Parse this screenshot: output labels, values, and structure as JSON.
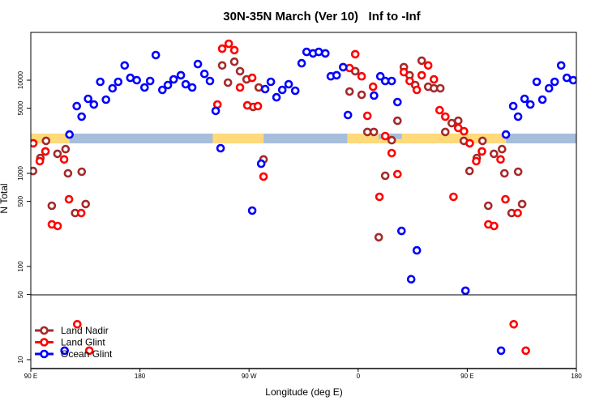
{
  "chart_data": {
    "type": "scatter",
    "title": "30N-35N March (Ver 10)   Inf to -Inf",
    "xlabel": "Longitude (deg E)",
    "ylabel": "N Total",
    "x_axis": {
      "range_deg_e": [
        90,
        180
      ],
      "wraps": "90 E eastward through 180, 0 and back to 180 (450 degrees)",
      "tick_labels": [
        "90 E",
        "180",
        "90 W",
        "0",
        "90 E",
        "180"
      ]
    },
    "y_axis": {
      "scale": "log",
      "upper_tick_labels": [
        "10000",
        "5000",
        "1000",
        "500",
        "100",
        "50"
      ],
      "lower_tick_labels": [
        "10"
      ],
      "panel_break": 50
    },
    "grid": false,
    "legend_position": "bottom-left",
    "coverage_band": {
      "value_range": [
        2100,
        2670
      ],
      "ocean_color": "#A6BDDB",
      "land_color": "#FFD97A",
      "land_segments_deg_e": [
        [
          -120,
          -78
        ],
        [
          -9,
          122
        ]
      ],
      "ocean_bumps_deg_e": [
        [
          17,
          36
        ]
      ]
    },
    "series": [
      {
        "name": "Land Nadir",
        "color": "#A52A2A",
        "points": [
          [
            -112.1,
            14400
          ],
          [
            -107.4,
            9420
          ],
          [
            -102.1,
            15800
          ],
          [
            -97.4,
            12500
          ],
          [
            -92.0,
            10200
          ],
          [
            -86.6,
            5160
          ],
          [
            -82.0,
            8350
          ],
          [
            -78.0,
            1410
          ],
          [
            -7.1,
            7550
          ],
          [
            -2.4,
            12500
          ],
          [
            2.9,
            6970
          ],
          [
            7.6,
            2780
          ],
          [
            13.0,
            2780
          ],
          [
            17.0,
            206
          ],
          [
            22.3,
            942
          ],
          [
            27.7,
            2270
          ],
          [
            32.4,
            3670
          ],
          [
            37.7,
            13800
          ],
          [
            42.4,
            11300
          ],
          [
            47.1,
            8870
          ],
          [
            52.4,
            16200
          ],
          [
            57.8,
            8510
          ],
          [
            62.5,
            8190
          ],
          [
            67.8,
            8190
          ],
          [
            71.9,
            2780
          ],
          [
            77.2,
            3460
          ],
          [
            82.6,
            3670
          ],
          [
            87.2,
            2230
          ],
          [
            91.9,
            1060
          ],
          [
            97.9,
            1460
          ],
          [
            102.6,
            2230
          ],
          [
            107.3,
            449
          ],
          [
            112.0,
            1620
          ],
          [
            118.7,
            1820
          ],
          [
            120.7,
            1000
          ],
          [
            126.6,
            375
          ],
          [
            132.0,
            1040
          ],
          [
            135.3,
            468
          ]
        ]
      },
      {
        "name": "Land Glint",
        "color": "#FF0000",
        "points": [
          [
            -116.1,
            5480
          ],
          [
            -112.1,
            21800
          ],
          [
            -106.7,
            24600
          ],
          [
            -102.1,
            21000
          ],
          [
            -97.4,
            8350
          ],
          [
            -91.4,
            5370
          ],
          [
            -87.4,
            10600
          ],
          [
            -82.7,
            5270
          ],
          [
            -78.0,
            923
          ],
          [
            -7.1,
            13500
          ],
          [
            -2.4,
            19000
          ],
          [
            2.9,
            11000
          ],
          [
            7.6,
            4140
          ],
          [
            12.3,
            8510
          ],
          [
            17.6,
            560
          ],
          [
            22.3,
            2510
          ],
          [
            27.7,
            1650
          ],
          [
            32.4,
            980
          ],
          [
            37.7,
            12200
          ],
          [
            42.5,
            9800
          ],
          [
            48.4,
            7870
          ],
          [
            52.4,
            11300
          ],
          [
            57.8,
            14400
          ],
          [
            62.5,
            10200
          ],
          [
            67.2,
            4770
          ],
          [
            71.9,
            4060
          ],
          [
            78.6,
            560
          ],
          [
            82.6,
            3070
          ],
          [
            87.3,
            2830
          ],
          [
            92.0,
            2100
          ],
          [
            97.4,
            1350
          ],
          [
            102.1,
            1720
          ],
          [
            107.4,
            283
          ],
          [
            112.1,
            272
          ],
          [
            117.5,
            1410
          ],
          [
            121.5,
            527
          ],
          [
            131.6,
            375
          ],
          [
            128.3,
            24
          ],
          [
            138.3,
            12.5
          ]
        ]
      },
      {
        "name": "Ocean Glint",
        "color": "#0000FF",
        "points": [
          [
            -176.2,
            8350
          ],
          [
            -171.6,
            9800
          ],
          [
            -166.9,
            18600
          ],
          [
            -161.5,
            7870
          ],
          [
            -156.9,
            8870
          ],
          [
            -152.2,
            10200
          ],
          [
            -146.2,
            11300
          ],
          [
            -142.2,
            9050
          ],
          [
            -136.9,
            8350
          ],
          [
            -132.2,
            14900
          ],
          [
            -126.8,
            11700
          ],
          [
            -122.2,
            9800
          ],
          [
            -117.5,
            4680
          ],
          [
            -113.5,
            1860
          ],
          [
            -87.4,
            398
          ],
          [
            -80.0,
            1270
          ],
          [
            -76.7,
            8020
          ],
          [
            -72.0,
            9610
          ],
          [
            -67.3,
            6560
          ],
          [
            -62.6,
            7870
          ],
          [
            -57.3,
            9050
          ],
          [
            -51.9,
            7710
          ],
          [
            -46.6,
            15200
          ],
          [
            -42.5,
            20100
          ],
          [
            -37.2,
            19400
          ],
          [
            -32.5,
            20100
          ],
          [
            -27.1,
            19400
          ],
          [
            -22.5,
            11000
          ],
          [
            -17.8,
            11300
          ],
          [
            -12.4,
            13800
          ],
          [
            -8.4,
            4230
          ],
          [
            13.1,
            6840
          ],
          [
            18.3,
            11000
          ],
          [
            22.3,
            9800
          ],
          [
            27.7,
            9800
          ],
          [
            32.4,
            5820
          ],
          [
            35.8,
            241
          ],
          [
            43.7,
            73
          ],
          [
            48.4,
            149
          ],
          [
            88.5,
            55
          ],
          [
            117.9,
            12.5
          ],
          [
            121.9,
            2610
          ],
          [
            127.9,
            5270
          ],
          [
            131.9,
            4060
          ],
          [
            137.3,
            6310
          ],
          [
            142.0,
            5480
          ],
          [
            147.3,
            9610
          ],
          [
            152.0,
            6180
          ],
          [
            157.4,
            8190
          ],
          [
            162.1,
            9610
          ],
          [
            167.4,
            14400
          ],
          [
            172.1,
            10600
          ],
          [
            177.4,
            10000
          ]
        ]
      }
    ]
  }
}
